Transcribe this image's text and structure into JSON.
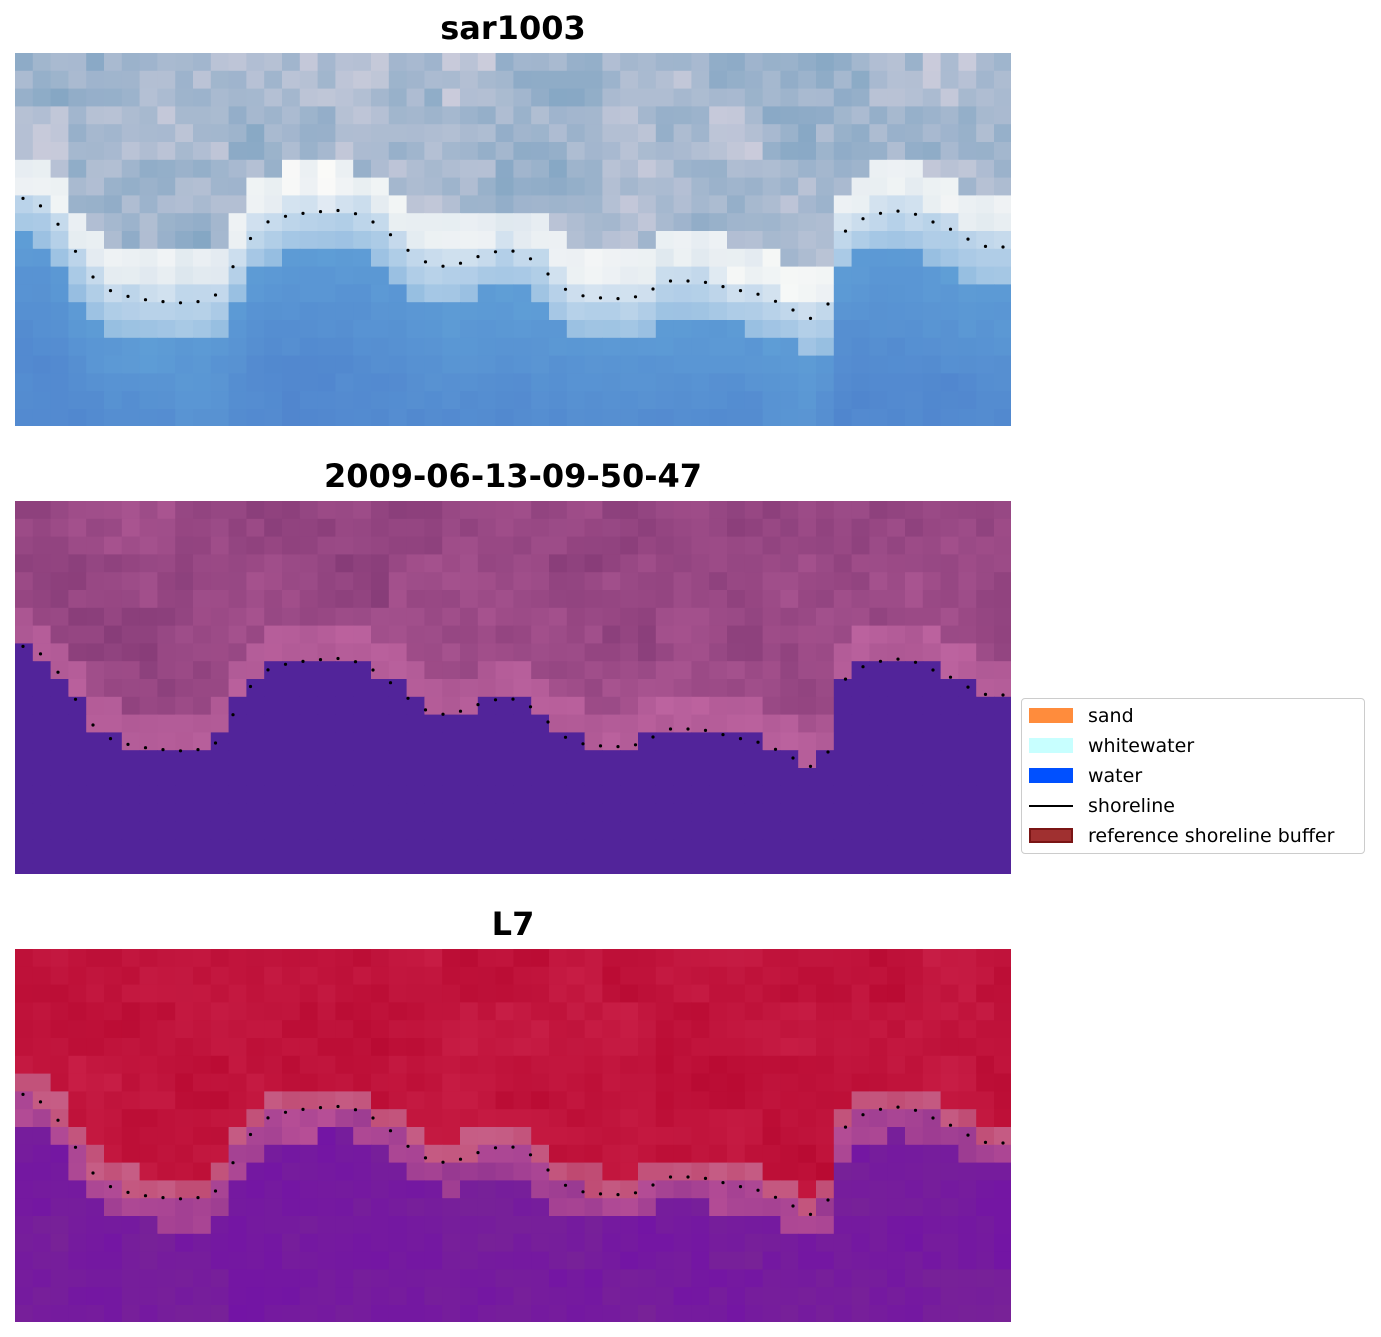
{
  "panels": [
    {
      "title": "sar1003",
      "style": "rgb"
    },
    {
      "title": "2009-06-13-09-50-47",
      "style": "classified"
    },
    {
      "title": "L7",
      "style": "index"
    }
  ],
  "legend": {
    "items": [
      {
        "label": "sand",
        "kind": "patch",
        "color": "#ff8c3c"
      },
      {
        "label": "whitewater",
        "kind": "patch",
        "color": "#c8ffff"
      },
      {
        "label": "water",
        "kind": "patch",
        "color": "#0050ff"
      },
      {
        "label": "shoreline",
        "kind": "line",
        "color": "#000000"
      },
      {
        "label": "reference shoreline buffer",
        "kind": "patch",
        "color": "#a03030",
        "edge": "#7a1515"
      }
    ]
  },
  "colors": {
    "classified_water": "#52249a",
    "classified_land": "#9e4a86",
    "index_land": "#c0143c",
    "index_water": "#7a2896",
    "shoreline_dots": "#000000"
  }
}
